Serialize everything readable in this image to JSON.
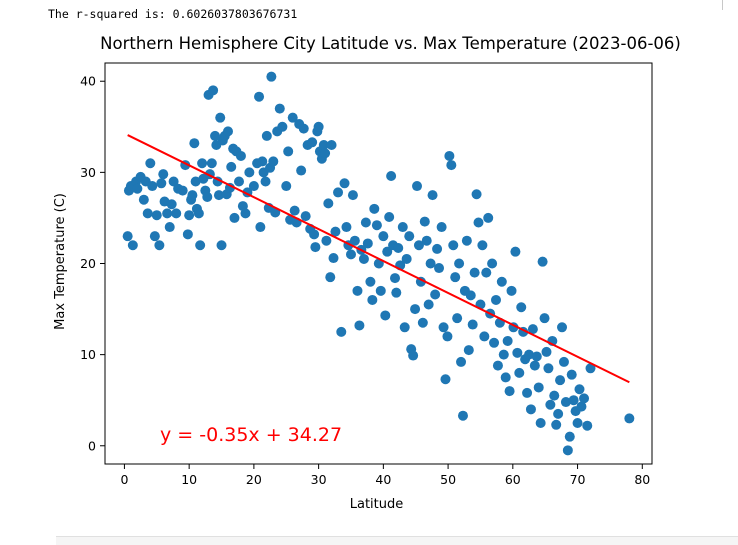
{
  "output": {
    "stdout": "The r-squared is: 0.6026037803676731"
  },
  "chart_data": {
    "type": "scatter",
    "title": "Northern Hemisphere City Latitude vs. Max Temperature (2023-06-06)",
    "xlabel": "Latitude",
    "ylabel": "Max Temperature (C)",
    "xlim": [
      -3,
      81.5
    ],
    "ylim": [
      -2,
      42
    ],
    "xticks": [
      0,
      10,
      20,
      30,
      40,
      50,
      60,
      70,
      80
    ],
    "yticks": [
      0,
      10,
      20,
      30,
      40
    ],
    "grid": false,
    "colors": {
      "points": "#1f77b4",
      "regression": "#ff0000"
    },
    "regression": {
      "slope": -0.35,
      "intercept": 34.27,
      "x_range": [
        0.5,
        78
      ],
      "equation_label": "y = -0.35x + 34.27",
      "label_anchor": [
        5.5,
        0.5
      ]
    },
    "points": [
      [
        0.5,
        23
      ],
      [
        0.7,
        28
      ],
      [
        1,
        28.5
      ],
      [
        1.3,
        22
      ],
      [
        1.8,
        29
      ],
      [
        2,
        28.2
      ],
      [
        2.5,
        29.5
      ],
      [
        3,
        27
      ],
      [
        3.3,
        29
      ],
      [
        3.6,
        25.5
      ],
      [
        4,
        31
      ],
      [
        4.3,
        28.5
      ],
      [
        4.7,
        23
      ],
      [
        5,
        25.3
      ],
      [
        5.4,
        22
      ],
      [
        5.7,
        28.8
      ],
      [
        6,
        29.8
      ],
      [
        6.2,
        26.8
      ],
      [
        6.6,
        25.5
      ],
      [
        7,
        24
      ],
      [
        7.3,
        26.5
      ],
      [
        7.6,
        29
      ],
      [
        8,
        25.5
      ],
      [
        8.3,
        28.2
      ],
      [
        9,
        28
      ],
      [
        9.4,
        30.8
      ],
      [
        9.8,
        23.2
      ],
      [
        10,
        25.3
      ],
      [
        10.3,
        27
      ],
      [
        10.5,
        27.5
      ],
      [
        10.8,
        33.2
      ],
      [
        11,
        29
      ],
      [
        11.2,
        26
      ],
      [
        11.5,
        25.5
      ],
      [
        11.7,
        22
      ],
      [
        12,
        31
      ],
      [
        12.2,
        29.3
      ],
      [
        12.5,
        28
      ],
      [
        12.8,
        27.3
      ],
      [
        13,
        38.5
      ],
      [
        13.2,
        29.8
      ],
      [
        13.5,
        31
      ],
      [
        13.7,
        39
      ],
      [
        14,
        34
      ],
      [
        14.2,
        33
      ],
      [
        14.4,
        29
      ],
      [
        14.6,
        27.5
      ],
      [
        14.8,
        36
      ],
      [
        15,
        22
      ],
      [
        15.2,
        33.5
      ],
      [
        15.5,
        34
      ],
      [
        15.8,
        27.6
      ],
      [
        16,
        34.5
      ],
      [
        16.3,
        28.3
      ],
      [
        16.5,
        30.6
      ],
      [
        16.8,
        32.6
      ],
      [
        17,
        25
      ],
      [
        17.3,
        32.3
      ],
      [
        17.7,
        29
      ],
      [
        18,
        31.8
      ],
      [
        18.3,
        26.3
      ],
      [
        18.7,
        25.5
      ],
      [
        19,
        27.8
      ],
      [
        19.3,
        30
      ],
      [
        20,
        28.5
      ],
      [
        20.5,
        31
      ],
      [
        20.8,
        38.3
      ],
      [
        21,
        24
      ],
      [
        21.3,
        31.2
      ],
      [
        21.5,
        30
      ],
      [
        21.8,
        29
      ],
      [
        22,
        34
      ],
      [
        22.3,
        26.1
      ],
      [
        22.5,
        30.5
      ],
      [
        22.7,
        40.5
      ],
      [
        23,
        31.2
      ],
      [
        23.3,
        25.6
      ],
      [
        23.6,
        34.5
      ],
      [
        24,
        37
      ],
      [
        24.4,
        35
      ],
      [
        25,
        28.5
      ],
      [
        25.3,
        32.3
      ],
      [
        25.6,
        24.8
      ],
      [
        26,
        36
      ],
      [
        26.3,
        25.8
      ],
      [
        26.6,
        24.5
      ],
      [
        27,
        35.3
      ],
      [
        27.3,
        30.2
      ],
      [
        27.7,
        34.8
      ],
      [
        28,
        25.2
      ],
      [
        28.3,
        33
      ],
      [
        28.7,
        23.8
      ],
      [
        29,
        33.3
      ],
      [
        29.3,
        23.2
      ],
      [
        29.5,
        21.8
      ],
      [
        29.8,
        34.5
      ],
      [
        30,
        35
      ],
      [
        30.2,
        32.3
      ],
      [
        30.5,
        31.5
      ],
      [
        30.8,
        33
      ],
      [
        31,
        32.1
      ],
      [
        31.2,
        22.5
      ],
      [
        31.5,
        26.6
      ],
      [
        31.8,
        18.5
      ],
      [
        32,
        33
      ],
      [
        32.3,
        20.6
      ],
      [
        32.6,
        23.5
      ],
      [
        33,
        27.8
      ],
      [
        33.5,
        12.5
      ],
      [
        34,
        28.8
      ],
      [
        34.3,
        24
      ],
      [
        34.6,
        22
      ],
      [
        35,
        21
      ],
      [
        35.3,
        27.5
      ],
      [
        35.6,
        22.5
      ],
      [
        36,
        17
      ],
      [
        36.3,
        13.2
      ],
      [
        36.6,
        21.5
      ],
      [
        37,
        20.5
      ],
      [
        37.3,
        24.5
      ],
      [
        37.6,
        22.2
      ],
      [
        38,
        18
      ],
      [
        38.3,
        16
      ],
      [
        38.6,
        26
      ],
      [
        39,
        24.2
      ],
      [
        39.3,
        20
      ],
      [
        39.6,
        17
      ],
      [
        40,
        23
      ],
      [
        40.3,
        14.3
      ],
      [
        40.6,
        21.3
      ],
      [
        40.9,
        25.1
      ],
      [
        41.2,
        29.6
      ],
      [
        41.5,
        22
      ],
      [
        41.8,
        18.4
      ],
      [
        42,
        16.8
      ],
      [
        42.3,
        21.7
      ],
      [
        42.6,
        19.8
      ],
      [
        43,
        24
      ],
      [
        43.3,
        13
      ],
      [
        43.6,
        20.5
      ],
      [
        44,
        23
      ],
      [
        44.3,
        10.6
      ],
      [
        44.6,
        9.9
      ],
      [
        44.9,
        15
      ],
      [
        45.2,
        28.5
      ],
      [
        45.5,
        22
      ],
      [
        45.8,
        18
      ],
      [
        46.1,
        13.5
      ],
      [
        46.4,
        24.6
      ],
      [
        46.7,
        22.5
      ],
      [
        47,
        15.5
      ],
      [
        47.3,
        20
      ],
      [
        47.6,
        27.5
      ],
      [
        48,
        16.6
      ],
      [
        48.3,
        21.6
      ],
      [
        48.6,
        19.5
      ],
      [
        49,
        24
      ],
      [
        49.3,
        13
      ],
      [
        49.6,
        7.3
      ],
      [
        49.9,
        12
      ],
      [
        50.2,
        31.8
      ],
      [
        50.5,
        30.8
      ],
      [
        50.8,
        22
      ],
      [
        51.1,
        18.5
      ],
      [
        51.4,
        14
      ],
      [
        51.7,
        20
      ],
      [
        52,
        9.2
      ],
      [
        52.3,
        3.3
      ],
      [
        52.6,
        17
      ],
      [
        52.9,
        22.5
      ],
      [
        53.2,
        10.5
      ],
      [
        53.5,
        16.5
      ],
      [
        53.8,
        13.3
      ],
      [
        54.1,
        19
      ],
      [
        54.4,
        27.6
      ],
      [
        54.7,
        24.5
      ],
      [
        55,
        15.5
      ],
      [
        55.3,
        22
      ],
      [
        55.6,
        12
      ],
      [
        55.9,
        19
      ],
      [
        56.2,
        25
      ],
      [
        56.5,
        14.5
      ],
      [
        56.8,
        20
      ],
      [
        57.1,
        11.3
      ],
      [
        57.4,
        16
      ],
      [
        57.7,
        8.8
      ],
      [
        58,
        13.5
      ],
      [
        58.3,
        18
      ],
      [
        58.6,
        10
      ],
      [
        58.9,
        7.5
      ],
      [
        59.2,
        11.5
      ],
      [
        59.5,
        6
      ],
      [
        59.8,
        17
      ],
      [
        60.1,
        13
      ],
      [
        60.4,
        21.3
      ],
      [
        60.7,
        10.2
      ],
      [
        61,
        8
      ],
      [
        61.3,
        15.2
      ],
      [
        61.6,
        12.5
      ],
      [
        61.9,
        9.5
      ],
      [
        62.2,
        5.8
      ],
      [
        62.5,
        10
      ],
      [
        62.8,
        4
      ],
      [
        63.1,
        12.8
      ],
      [
        63.4,
        8.8
      ],
      [
        63.7,
        9.8
      ],
      [
        64,
        6.4
      ],
      [
        64.3,
        2.5
      ],
      [
        64.6,
        20.2
      ],
      [
        64.9,
        14
      ],
      [
        65.2,
        10.3
      ],
      [
        65.5,
        8.5
      ],
      [
        65.8,
        4.5
      ],
      [
        66.1,
        11.5
      ],
      [
        66.4,
        5.5
      ],
      [
        66.7,
        2.3
      ],
      [
        67,
        3.5
      ],
      [
        67.3,
        7.2
      ],
      [
        67.6,
        13
      ],
      [
        67.9,
        9.2
      ],
      [
        68.2,
        4.8
      ],
      [
        68.5,
        -0.5
      ],
      [
        68.8,
        1
      ],
      [
        69.1,
        7.8
      ],
      [
        69.4,
        5
      ],
      [
        69.7,
        3.8
      ],
      [
        70,
        2.5
      ],
      [
        70.3,
        6.2
      ],
      [
        70.6,
        4.3
      ],
      [
        71,
        5.2
      ],
      [
        71.5,
        2.2
      ],
      [
        72,
        8.5
      ],
      [
        78,
        3
      ]
    ]
  }
}
